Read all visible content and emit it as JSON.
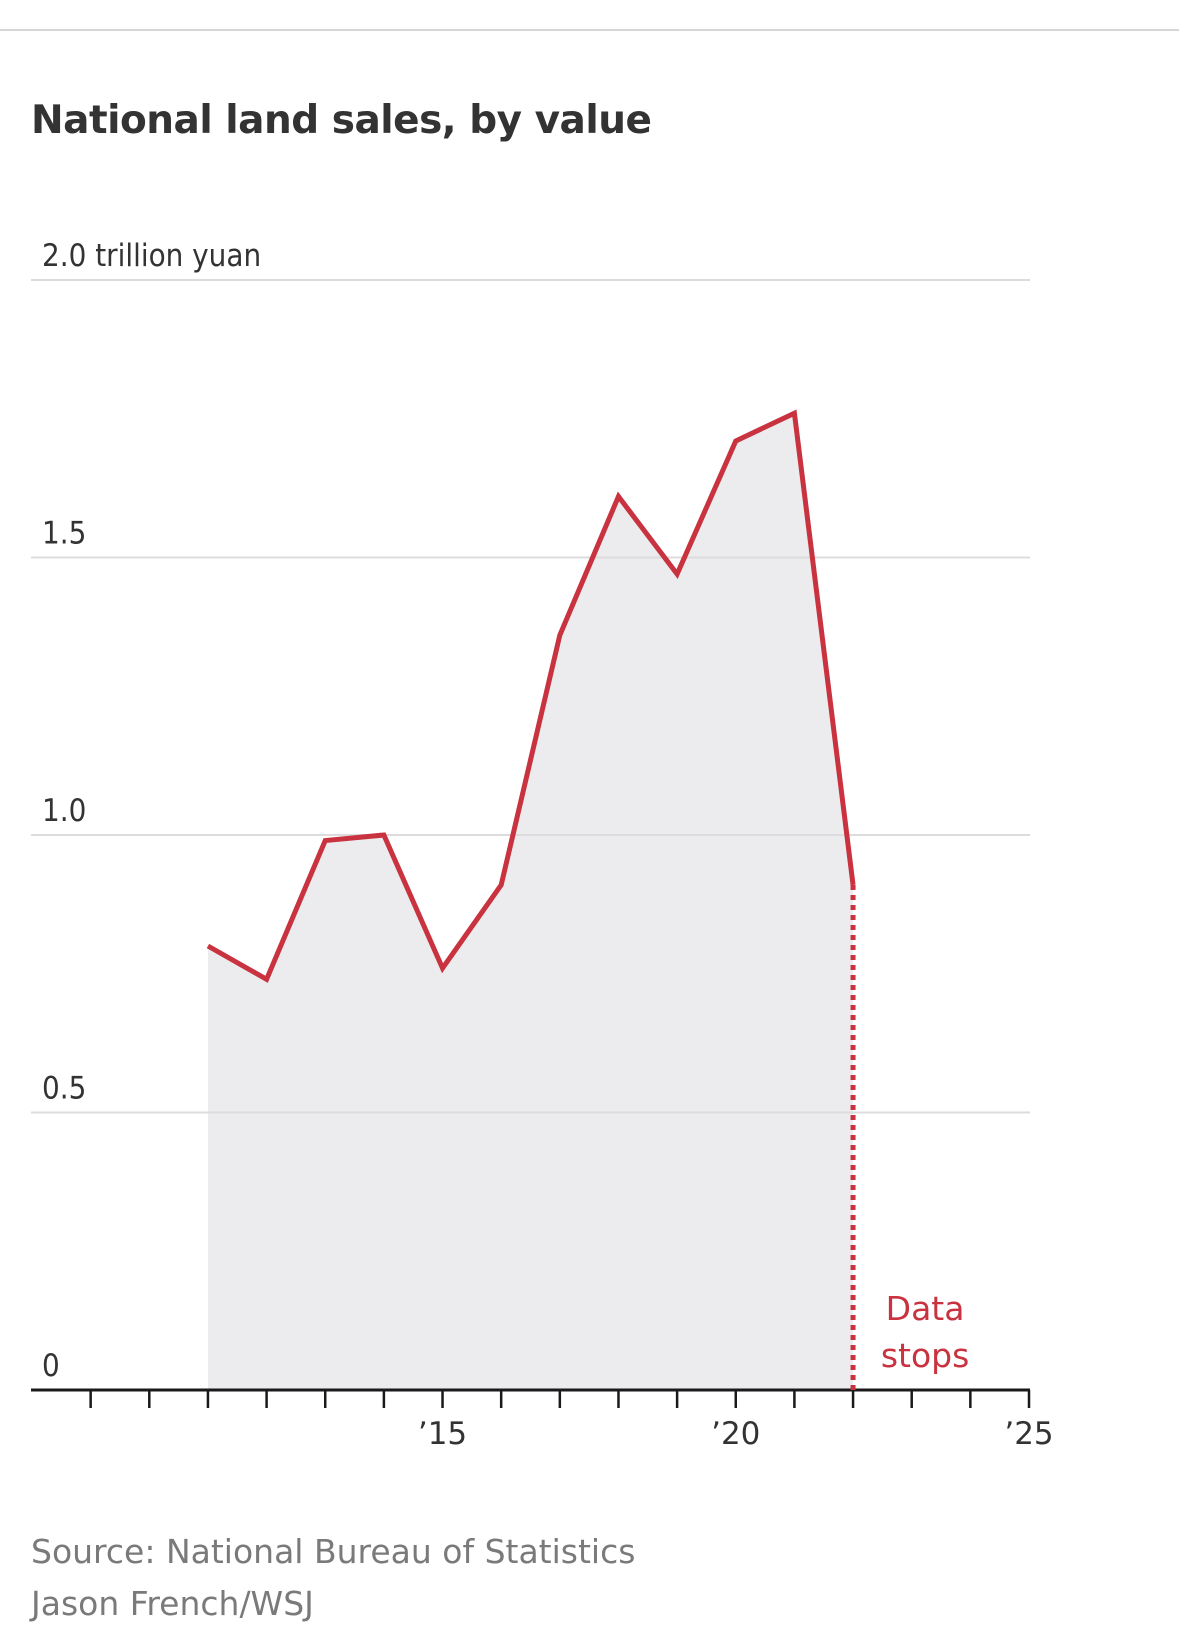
{
  "header": {
    "title": "National land sales, by value"
  },
  "chart_data": {
    "type": "area",
    "title": "National land sales, by value",
    "xlabel": "",
    "ylabel": "",
    "x": [
      2011,
      2012,
      2013,
      2014,
      2015,
      2016,
      2017,
      2018,
      2019,
      2020,
      2021,
      2022
    ],
    "series": [
      {
        "values": [
          0.8,
          0.74,
          0.99,
          1.0,
          0.76,
          0.91,
          1.36,
          1.61,
          1.47,
          1.71,
          1.76,
          0.91
        ]
      }
    ],
    "xlim": [
      2008,
      2025
    ],
    "ylim": [
      0,
      2.0
    ],
    "x_ticks": [
      2009,
      2010,
      2011,
      2012,
      2013,
      2014,
      2015,
      2016,
      2017,
      2018,
      2019,
      2020,
      2021,
      2022,
      2023,
      2024,
      2025
    ],
    "x_tick_labels": [
      {
        "x": 2015,
        "label": "’15"
      },
      {
        "x": 2020,
        "label": "’20"
      },
      {
        "x": 2025,
        "label": "’25"
      }
    ],
    "y_ticks": [
      {
        "y": 0,
        "label": "0"
      },
      {
        "y": 0.5,
        "label": "0.5"
      },
      {
        "y": 1.0,
        "label": "1.0"
      },
      {
        "y": 1.5,
        "label": "1.5"
      },
      {
        "y": 2.0,
        "label": "2.0 trillion yuan"
      }
    ],
    "grid": true,
    "annotation": {
      "x": 2022,
      "lines": [
        "Data",
        "stops"
      ],
      "style": "dotted vertical line"
    },
    "colors": {
      "line": "#c9323f",
      "area": "#ececee",
      "grid": "#dcdcdc",
      "axis": "#1a1a1a",
      "tick_label": "#333333",
      "annotation": "#c9323f"
    }
  },
  "footer": {
    "source": "Source: National Bureau of Statistics",
    "credit": "Jason French/WSJ"
  }
}
